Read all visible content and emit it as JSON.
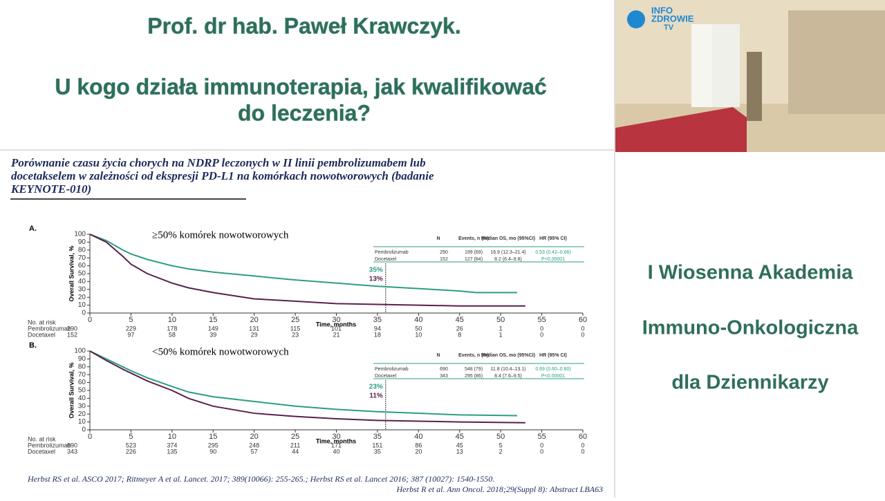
{
  "header": {
    "title_lines": [
      "Prof. dr hab. Paweł Krawczyk.",
      "U kogo działa immunoterapia, jak kwalifikować",
      "do leczenia?"
    ]
  },
  "video": {
    "logo": [
      "INFO",
      "ZDROWIE",
      "TV"
    ]
  },
  "sidebar": {
    "lines": [
      "I Wiosenna Akademia",
      "Immuno-Onkologiczna",
      "dla Dziennikarzy"
    ]
  },
  "slide": {
    "heading_lines": [
      "Porównanie czasu życia chorych na NDRP leczonych w II linii pembrolizumabem lub",
      "docetakselem w zależności od ekspresji PD-L1 na komórkach nowotworowych (badanie",
      "KEYNOTE-010)"
    ],
    "citations": [
      "Herbst RS et al. ASCO 2017; Ritmeyer A et al. Lancet. 2017; 389(10066): 255-265.; Herbst RS et al. Lancet 2016; 387 (10027): 1540-1550.",
      "Herbst R et al. Ann Oncol. 2018;29(Suppl 8): Abstract LBA63"
    ]
  },
  "chart_data": [
    {
      "type": "line",
      "title": "A.",
      "subtitle": "≥50% komórek nowotworowych",
      "xlabel": "Time, months",
      "ylabel": "Overall Survival, %",
      "xlim": [
        0,
        60
      ],
      "xticks": [
        0,
        5,
        10,
        15,
        20,
        25,
        30,
        35,
        40,
        45,
        50,
        55,
        60
      ],
      "ylim": [
        0,
        100
      ],
      "yticks": [
        0,
        10,
        20,
        30,
        40,
        50,
        60,
        70,
        80,
        90,
        100
      ],
      "series": [
        {
          "name": "Pembrolizumab",
          "color": "#2a9d83",
          "x": [
            0,
            2,
            4,
            5,
            7,
            10,
            12,
            15,
            20,
            25,
            30,
            35,
            40,
            45,
            47,
            52
          ],
          "values": [
            100,
            92,
            80,
            75,
            68,
            60,
            56,
            52,
            47,
            42,
            38,
            34,
            31,
            28,
            26,
            26
          ]
        },
        {
          "name": "Docetaxel",
          "color": "#5a1f4a",
          "x": [
            0,
            2,
            4,
            5,
            7,
            10,
            12,
            15,
            20,
            25,
            30,
            35,
            40,
            45,
            53
          ],
          "values": [
            100,
            90,
            72,
            62,
            50,
            38,
            32,
            26,
            18,
            15,
            12,
            11,
            10,
            9,
            9
          ]
        }
      ],
      "annotations": [
        "35%",
        "13%"
      ],
      "table": {
        "header": [
          "N",
          "Events, n (%)",
          "Median OS, mo (95%CI)",
          "HR (95% CI)"
        ],
        "rows": [
          [
            "Pembrolizumab",
            "290",
            "199 (69)",
            "16.9 (12.3–21.4)",
            "0.53 (0.42–0.66)"
          ],
          [
            "Docetaxel",
            "152",
            "127 (84)",
            "8.2 (6.4–9.8)",
            "P<0.00001"
          ]
        ]
      },
      "risk": {
        "label": "No. at risk",
        "rows": [
          {
            "name": "Pembrolizumab",
            "counts": [
              290,
              229,
              178,
              149,
              131,
              115,
              101,
              94,
              50,
              26,
              1,
              0,
              0
            ]
          },
          {
            "name": "Docetaxel",
            "counts": [
              152,
              97,
              58,
              39,
              29,
              23,
              21,
              18,
              10,
              8,
              1,
              0,
              0
            ]
          }
        ]
      }
    },
    {
      "type": "line",
      "title": "B.",
      "subtitle": "<50% komórek nowotworowych",
      "xlabel": "Time, months",
      "ylabel": "Overall Survival, %",
      "xlim": [
        0,
        60
      ],
      "xticks": [
        0,
        5,
        10,
        15,
        20,
        25,
        30,
        35,
        40,
        45,
        50,
        55,
        60
      ],
      "ylim": [
        0,
        100
      ],
      "yticks": [
        0,
        10,
        20,
        30,
        40,
        50,
        60,
        70,
        80,
        90,
        100
      ],
      "series": [
        {
          "name": "Pembrolizumab",
          "color": "#2a9d83",
          "x": [
            0,
            2,
            4,
            5,
            7,
            10,
            12,
            15,
            20,
            25,
            30,
            35,
            40,
            45,
            52
          ],
          "values": [
            100,
            90,
            80,
            75,
            66,
            55,
            48,
            42,
            36,
            30,
            26,
            23,
            21,
            19,
            18
          ]
        },
        {
          "name": "Docetaxel",
          "color": "#5a1f4a",
          "x": [
            0,
            2,
            4,
            5,
            7,
            10,
            12,
            15,
            20,
            25,
            30,
            35,
            40,
            45,
            53
          ],
          "values": [
            100,
            88,
            77,
            72,
            62,
            50,
            40,
            30,
            21,
            17,
            14,
            12,
            11,
            10,
            9
          ]
        }
      ],
      "annotations": [
        "23%",
        "11%"
      ],
      "table": {
        "header": [
          "N",
          "Events, n (%)",
          "Median OS, mo (95%CI)",
          "HR (95% CI)"
        ],
        "rows": [
          [
            "Pembrolizumab",
            "690",
            "548 (79)",
            "11.8 (10.4–13.1)",
            "0.69 (0.60–0.80)"
          ],
          [
            "Docetaxel",
            "343",
            "295 (86)",
            "8.4 (7.6–9.5)",
            "P<0.00001"
          ]
        ]
      },
      "risk": {
        "label": "No. at risk",
        "rows": [
          {
            "name": "Pembrolizumab",
            "counts": [
              690,
              523,
              374,
              295,
              248,
              211,
              171,
              151,
              86,
              45,
              5,
              0,
              0
            ]
          },
          {
            "name": "Docetaxel",
            "counts": [
              343,
              226,
              135,
              90,
              57,
              44,
              40,
              35,
              20,
              13,
              2,
              0,
              0
            ]
          }
        ]
      }
    }
  ]
}
